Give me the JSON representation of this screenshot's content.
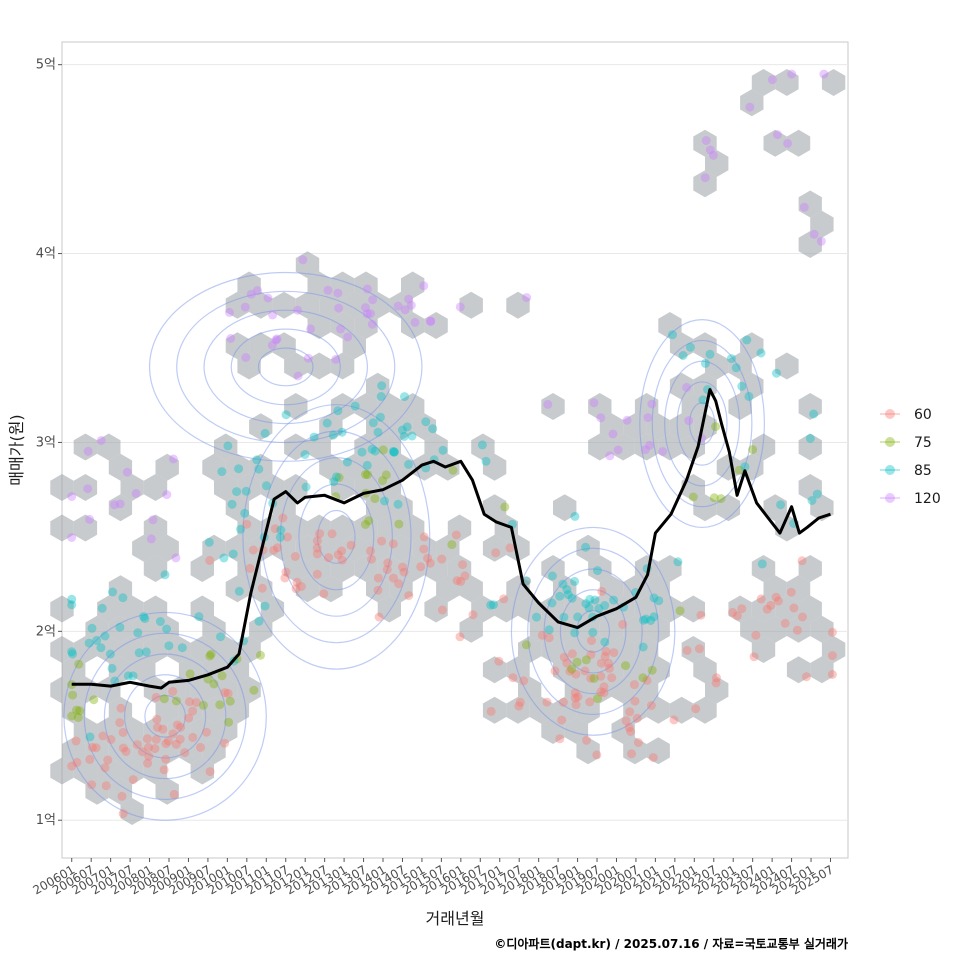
{
  "chart_data": {
    "type": "scatter",
    "xlabel": "거래년월",
    "ylabel": "매매가(원)",
    "credit": "©디아파트(dapt.kr) / 2025.07.16 / 자료=국토교통부 실거래가",
    "x_ticks": [
      "200601",
      "200607",
      "200701",
      "200707",
      "200801",
      "200807",
      "200901",
      "200907",
      "201001",
      "201007",
      "201101",
      "201107",
      "201201",
      "201207",
      "201301",
      "201307",
      "201401",
      "201407",
      "201501",
      "201507",
      "201601",
      "201607",
      "201701",
      "201707",
      "201801",
      "201807",
      "201901",
      "201907",
      "202001",
      "202007",
      "202101",
      "202107",
      "202201",
      "202207",
      "202301",
      "202307",
      "202401",
      "202407",
      "202501",
      "202507"
    ],
    "y_ticks": [
      {
        "value": 1,
        "label": "1억"
      },
      {
        "value": 2,
        "label": "2억"
      },
      {
        "value": 3,
        "label": "3억"
      },
      {
        "value": 4,
        "label": "4억"
      },
      {
        "value": 5,
        "label": "5억"
      }
    ],
    "ylim": [
      0.8,
      5.12
    ],
    "xlim": [
      2005.75,
      2025.95
    ],
    "legend": {
      "position": "right",
      "entries": [
        {
          "name": "60",
          "color": "#F8766D"
        },
        {
          "name": "75",
          "color": "#7CAE00"
        },
        {
          "name": "85",
          "color": "#00BFC4"
        },
        {
          "name": "120",
          "color": "#C77CFF"
        }
      ]
    },
    "hex_color": "#9aa1a6",
    "contour_color": "#6f8ee8",
    "line_color": "#000000",
    "clusters": [
      {
        "series": "60",
        "cx": 2007.6,
        "cy": 1.35,
        "sx": 0.9,
        "sy": 0.12,
        "n": 35
      },
      {
        "series": "60",
        "cx": 2009.2,
        "cy": 1.5,
        "sx": 0.5,
        "sy": 0.12,
        "n": 20
      },
      {
        "series": "60",
        "cx": 2012.5,
        "cy": 2.35,
        "sx": 1.7,
        "sy": 0.1,
        "n": 45
      },
      {
        "series": "60",
        "cx": 2015.8,
        "cy": 2.3,
        "sx": 1.0,
        "sy": 0.15,
        "n": 15
      },
      {
        "series": "60",
        "cx": 2018.5,
        "cy": 1.8,
        "sx": 1.1,
        "sy": 0.16,
        "n": 35
      },
      {
        "series": "60",
        "cx": 2020.5,
        "cy": 1.6,
        "sx": 0.9,
        "sy": 0.2,
        "n": 22
      },
      {
        "series": "60",
        "cx": 2023.8,
        "cy": 2.05,
        "sx": 1.2,
        "sy": 0.14,
        "n": 25
      },
      {
        "series": "75",
        "cx": 2006.2,
        "cy": 1.6,
        "sx": 0.3,
        "sy": 0.1,
        "n": 8
      },
      {
        "series": "75",
        "cx": 2009.6,
        "cy": 1.75,
        "sx": 0.6,
        "sy": 0.15,
        "n": 15
      },
      {
        "series": "75",
        "cx": 2013.8,
        "cy": 2.7,
        "sx": 1.2,
        "sy": 0.15,
        "n": 15
      },
      {
        "series": "75",
        "cx": 2020.0,
        "cy": 1.9,
        "sx": 0.8,
        "sy": 0.12,
        "n": 10
      },
      {
        "series": "75",
        "cx": 2022.5,
        "cy": 2.9,
        "sx": 0.6,
        "sy": 0.2,
        "n": 6
      },
      {
        "series": "85",
        "cx": 2007.5,
        "cy": 1.95,
        "sx": 1.0,
        "sy": 0.15,
        "n": 30
      },
      {
        "series": "85",
        "cx": 2010.4,
        "cy": 2.5,
        "sx": 0.6,
        "sy": 0.25,
        "n": 20
      },
      {
        "series": "85",
        "cx": 2013.5,
        "cy": 2.95,
        "sx": 1.7,
        "sy": 0.15,
        "n": 45
      },
      {
        "series": "85",
        "cx": 2019.5,
        "cy": 2.15,
        "sx": 1.3,
        "sy": 0.14,
        "n": 40
      },
      {
        "series": "85",
        "cx": 2022.3,
        "cy": 3.35,
        "sx": 0.9,
        "sy": 0.15,
        "n": 12
      },
      {
        "series": "85",
        "cx": 2024.5,
        "cy": 2.8,
        "sx": 0.8,
        "sy": 0.3,
        "n": 10
      },
      {
        "series": "120",
        "cx": 2007.2,
        "cy": 2.65,
        "sx": 1.0,
        "sy": 0.17,
        "n": 15
      },
      {
        "series": "120",
        "cx": 2011.5,
        "cy": 3.6,
        "sx": 1.4,
        "sy": 0.15,
        "n": 20
      },
      {
        "series": "120",
        "cx": 2014.8,
        "cy": 3.7,
        "sx": 1.2,
        "sy": 0.1,
        "n": 18
      },
      {
        "series": "120",
        "cx": 2020.8,
        "cy": 3.1,
        "sx": 0.9,
        "sy": 0.1,
        "n": 15
      },
      {
        "series": "120",
        "cx": 2022.3,
        "cy": 4.55,
        "sx": 0.15,
        "sy": 0.1,
        "n": 4
      },
      {
        "series": "120",
        "cx": 2024.1,
        "cy": 4.8,
        "sx": 0.3,
        "sy": 0.12,
        "n": 5
      },
      {
        "series": "120",
        "cx": 2025.3,
        "cy": 4.5,
        "sx": 0.25,
        "sy": 0.35,
        "n": 4
      }
    ],
    "median_line": {
      "x": [
        2006.0,
        2006.5,
        2007.0,
        2007.5,
        2008.0,
        2008.3,
        2008.5,
        2009.0,
        2009.5,
        2010.0,
        2010.3,
        2010.6,
        2010.9,
        2011.2,
        2011.5,
        2011.8,
        2012.0,
        2012.5,
        2013.0,
        2013.5,
        2014.0,
        2014.5,
        2015.0,
        2015.3,
        2015.6,
        2016.0,
        2016.3,
        2016.6,
        2016.9,
        2017.3,
        2017.6,
        2018.0,
        2018.5,
        2019.0,
        2019.5,
        2020.0,
        2020.5,
        2020.8,
        2021.0,
        2021.4,
        2021.8,
        2022.1,
        2022.4,
        2022.55,
        2022.7,
        2022.9,
        2023.1,
        2023.3,
        2023.6,
        2023.9,
        2024.2,
        2024.5,
        2024.7,
        2024.9,
        2025.2,
        2025.5
      ],
      "y": [
        1.72,
        1.72,
        1.71,
        1.73,
        1.71,
        1.7,
        1.73,
        1.74,
        1.77,
        1.81,
        1.88,
        2.2,
        2.45,
        2.7,
        2.74,
        2.68,
        2.71,
        2.72,
        2.68,
        2.73,
        2.75,
        2.8,
        2.88,
        2.9,
        2.87,
        2.9,
        2.8,
        2.62,
        2.58,
        2.55,
        2.25,
        2.15,
        2.05,
        2.02,
        2.08,
        2.12,
        2.18,
        2.3,
        2.52,
        2.62,
        2.8,
        2.98,
        3.28,
        3.22,
        3.1,
        2.95,
        2.72,
        2.85,
        2.68,
        2.6,
        2.52,
        2.66,
        2.52,
        2.55,
        2.6,
        2.62
      ]
    }
  }
}
